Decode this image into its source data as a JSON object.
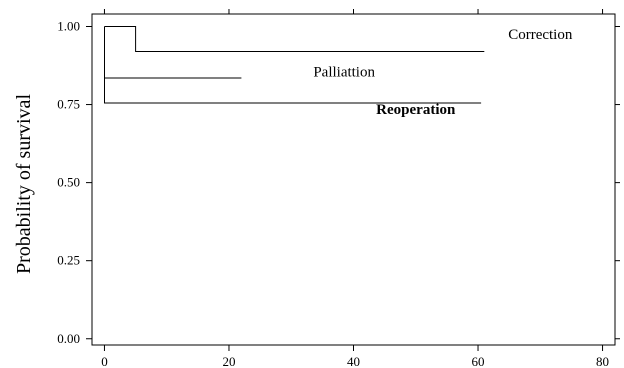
{
  "chart_data": {
    "type": "line",
    "title": "",
    "xlabel": "",
    "ylabel": "Probability of survival",
    "xlim": [
      -2,
      82
    ],
    "ylim": [
      -0.02,
      1.04
    ],
    "x_ticks": [
      0,
      20,
      40,
      60,
      80
    ],
    "x_tick_labels": [
      "0",
      "20",
      "40",
      "60",
      "80"
    ],
    "y_ticks": [
      0.0,
      0.25,
      0.5,
      0.75,
      1.0
    ],
    "y_tick_labels": [
      "0.00",
      "0.25",
      "0.50",
      "0.75",
      "1.00"
    ],
    "grid": false,
    "legend": "none",
    "series": [
      {
        "name": "Correction",
        "step_points": [
          [
            0,
            1.0
          ],
          [
            5,
            1.0
          ],
          [
            5,
            0.92
          ],
          [
            61,
            0.92
          ]
        ]
      },
      {
        "name": "Palliattion",
        "step_points": [
          [
            0,
            0.835
          ],
          [
            22,
            0.835
          ]
        ]
      },
      {
        "name": "Reoperation",
        "step_points": [
          [
            0,
            1.0
          ],
          [
            0,
            0.755
          ],
          [
            60.5,
            0.755
          ]
        ]
      }
    ],
    "annotations": [
      {
        "text": "Correction",
        "x": 70,
        "y": 0.96,
        "bold": false
      },
      {
        "text": "Palliattion",
        "x": 38.5,
        "y": 0.84,
        "bold": false
      },
      {
        "text": "Reoperation",
        "x": 50,
        "y": 0.72,
        "bold": true
      }
    ]
  }
}
